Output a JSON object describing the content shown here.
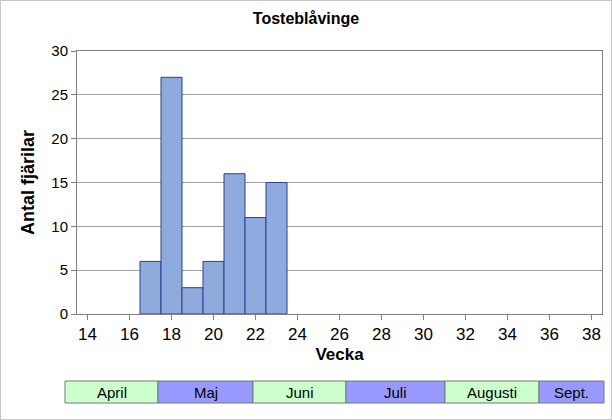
{
  "chart_data": {
    "type": "bar",
    "title": "Tosteblåvinge",
    "x_label": "Vecka",
    "y_label": "Antal fjärilar",
    "x": [
      17,
      18,
      19,
      20,
      21,
      22,
      23
    ],
    "values": [
      6,
      27,
      3,
      6,
      16,
      11,
      15
    ],
    "color": "#8faadc",
    "xlim": [
      13.5,
      38.5
    ],
    "xticks": [
      14,
      16,
      18,
      20,
      22,
      24,
      26,
      28,
      30,
      32,
      34,
      36,
      38
    ],
    "ylim": [
      0,
      30
    ],
    "yticks": [
      0,
      5,
      10,
      15,
      20,
      25,
      30
    ],
    "grid": true,
    "annotations": [
      {
        "text": "April",
        "color": "#ccffcc"
      },
      {
        "text": "Maj",
        "color": "#9999ff"
      },
      {
        "text": "Juni",
        "color": "#ccffcc"
      },
      {
        "text": "Juli",
        "color": "#9999ff"
      },
      {
        "text": "Augusti",
        "color": "#ccffcc"
      },
      {
        "text": "Sept.",
        "color": "#9999ff"
      }
    ]
  }
}
